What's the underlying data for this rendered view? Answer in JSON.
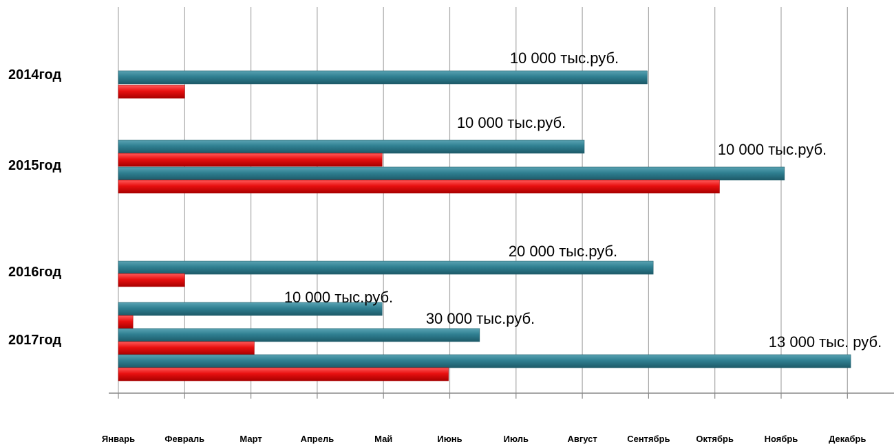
{
  "chart_data": {
    "type": "bar",
    "orientation": "horizontal",
    "title": "",
    "xlabel": "",
    "ylabel": "",
    "x_categories": [
      "Январь",
      "Февраль",
      "Март",
      "Апрель",
      "Май",
      "Июнь",
      "Июль",
      "Август",
      "Сентябрь",
      "Октябрь",
      "Ноябрь",
      "Декабрь"
    ],
    "x_range": [
      0,
      11
    ],
    "grid": "vertical",
    "legend": "none",
    "colors": {
      "teal": "#2f7f91",
      "red": "#e81010"
    },
    "groups": [
      {
        "label": "2014год",
        "bars": [
          {
            "series": "teal",
            "start": 0,
            "end": 7.98,
            "label": "10 000 тыс.руб."
          },
          {
            "series": "red",
            "start": 0,
            "end": 1.0
          }
        ]
      },
      {
        "label": "2015год",
        "bars": [
          {
            "series": "teal",
            "start": 0,
            "end": 7.03,
            "label": "10 000 тыс.руб."
          },
          {
            "series": "red",
            "start": 0,
            "end": 3.98
          },
          {
            "series": "teal",
            "start": 0,
            "end": 10.05,
            "label": "10 000 тыс.руб."
          },
          {
            "series": "red",
            "start": 0,
            "end": 9.07
          }
        ]
      },
      {
        "label": "2016год",
        "bars": [
          {
            "series": "teal",
            "start": 0,
            "end": 8.07,
            "label": "20 000 тыс.руб."
          },
          {
            "series": "red",
            "start": 0,
            "end": 1.0
          }
        ]
      },
      {
        "label": "2017год",
        "bars": [
          {
            "series": "teal",
            "start": 0,
            "end": 3.98,
            "label": "10 000 тыс.руб."
          },
          {
            "series": "red",
            "start": 0,
            "end": 0.22
          },
          {
            "series": "teal",
            "start": 0,
            "end": 5.45,
            "label": "30 000 тыс.руб."
          },
          {
            "series": "red",
            "start": 0,
            "end": 2.05
          },
          {
            "series": "teal",
            "start": 0,
            "end": 11.05,
            "label": "13 000 тыс. руб."
          },
          {
            "series": "red",
            "start": 0,
            "end": 4.98
          }
        ]
      }
    ]
  }
}
